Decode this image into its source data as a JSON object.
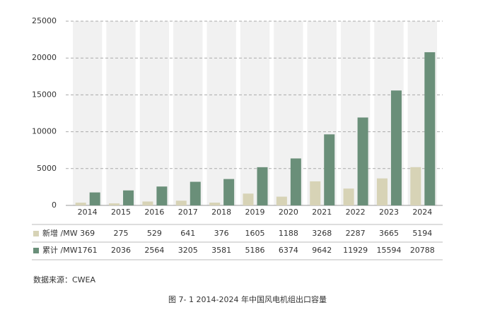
{
  "chart_data": {
    "type": "bar",
    "categories": [
      "2014",
      "2015",
      "2016",
      "2017",
      "2018",
      "2019",
      "2020",
      "2021",
      "2022",
      "2023",
      "2024"
    ],
    "series": [
      {
        "name": "新增 /MW",
        "color": "#d7d3b6",
        "values": [
          369,
          275,
          529,
          641,
          376,
          1605,
          1188,
          3268,
          2287,
          3665,
          5194
        ]
      },
      {
        "name": "累计 /MW",
        "color": "#6a8f79",
        "values": [
          1761,
          2036,
          2564,
          3205,
          3581,
          5186,
          6374,
          9642,
          11929,
          15594,
          20788
        ]
      }
    ],
    "ylim": [
      0,
      25000
    ],
    "yticks": [
      0,
      5000,
      10000,
      15000,
      20000,
      25000
    ],
    "grid": true,
    "source": "数据来源：CWEA",
    "caption": "图 7- 1 2014-2024 年中国风电机组出口容量"
  }
}
